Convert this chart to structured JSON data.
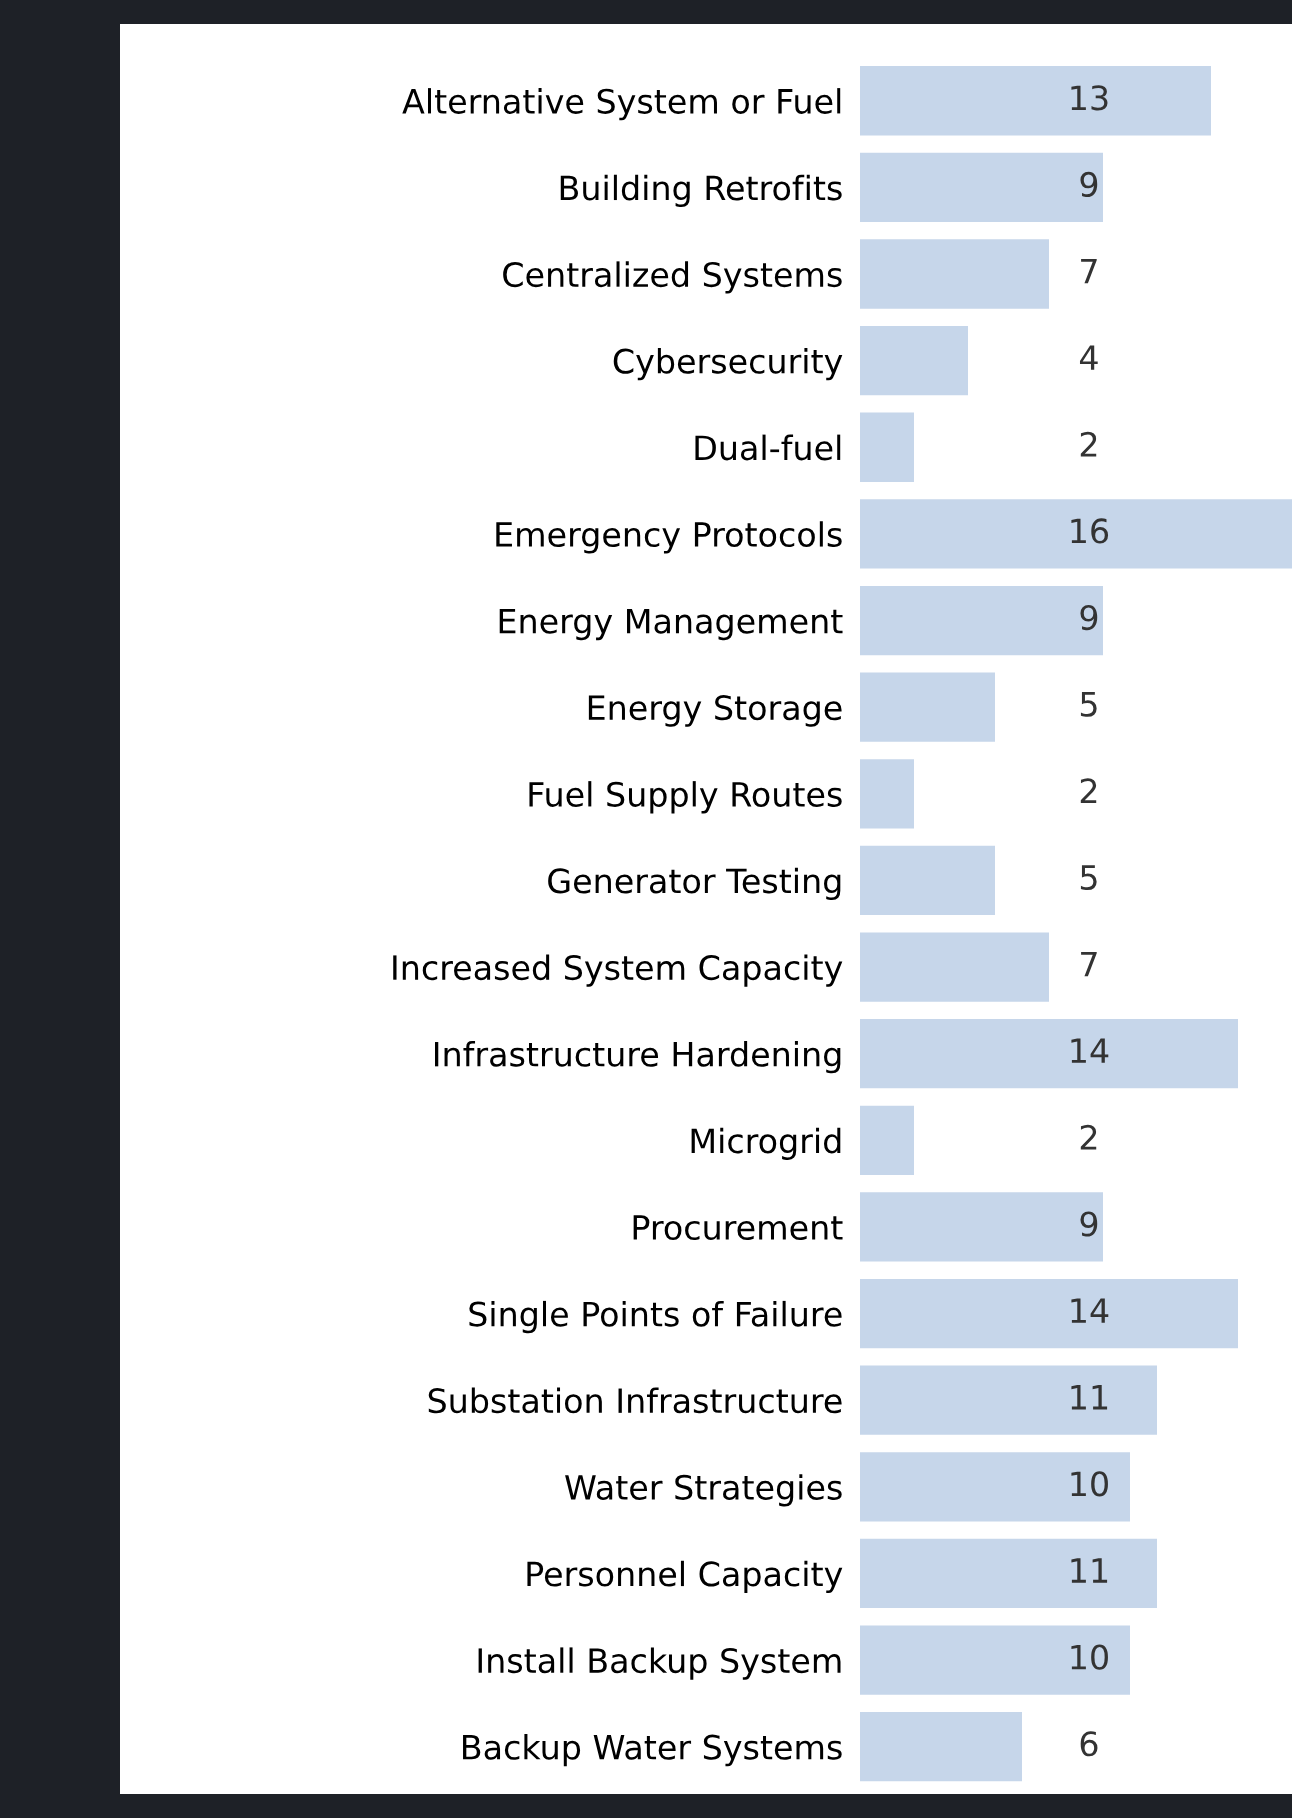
{
  "chart_data": {
    "type": "bar",
    "orientation": "horizontal",
    "data_labels": true,
    "tick_labels": "y",
    "grid": false,
    "legend": false,
    "color": "#c6d6ea",
    "categories": [
      "Alternative System or Fuel",
      "Building Retrofits",
      "Centralized Systems",
      "Cybersecurity",
      "Dual-fuel",
      "Emergency Protocols",
      "Energy Management",
      "Energy Storage",
      "Fuel Supply Routes",
      "Generator Testing",
      "Increased System Capacity",
      "Infrastructure Hardening",
      "Microgrid",
      "Procurement",
      "Single Points of Failure",
      "Substation Infrastructure",
      "Water Strategies",
      "Personnel Capacity",
      "Install Backup System",
      "Backup Water Systems"
    ],
    "values": [
      13,
      9,
      7,
      4,
      2,
      16,
      9,
      5,
      2,
      5,
      7,
      14,
      2,
      9,
      14,
      11,
      10,
      11,
      10,
      6
    ]
  }
}
